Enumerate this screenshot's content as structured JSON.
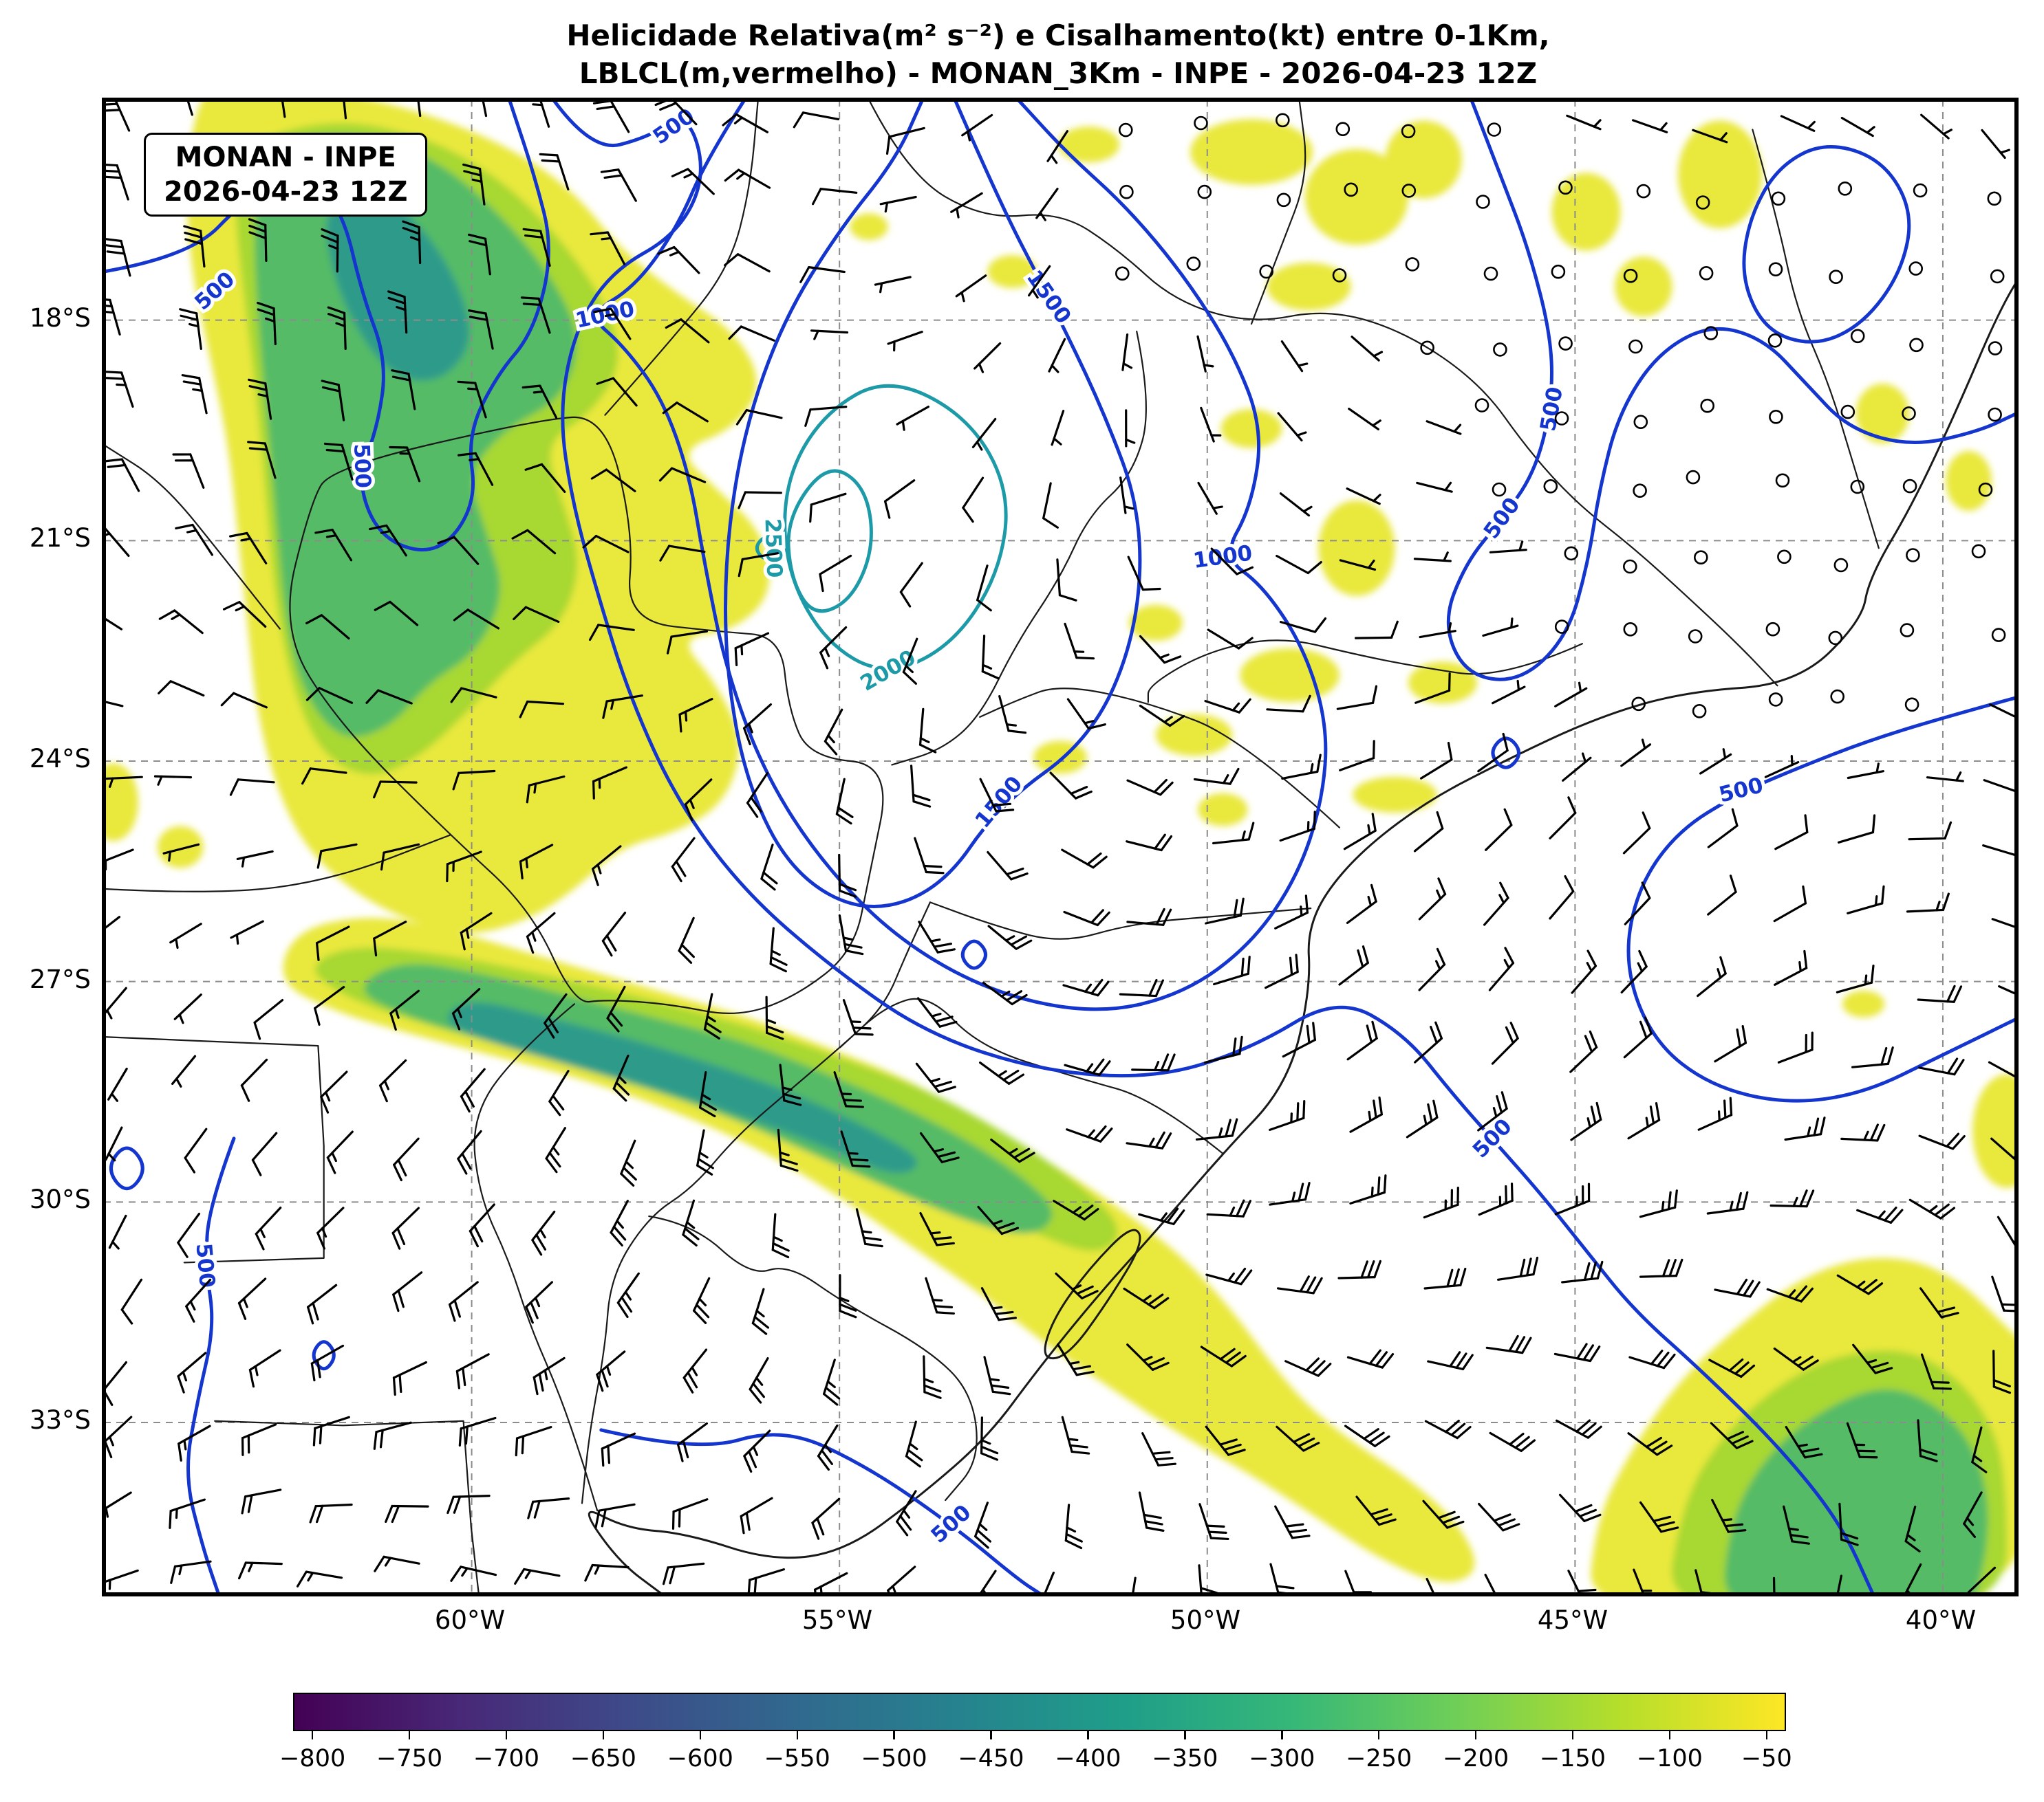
{
  "title": {
    "line1": "Helicidade Relativa(m² s⁻²) e Cisalhamento(kt) entre 0-1Km,",
    "line2": "LBLCL(m,vermelho) - MONAN_3Km - INPE - 2026-04-23 12Z"
  },
  "info_box": {
    "line1": "MONAN - INPE",
    "line2": "2026-04-23 12Z"
  },
  "axes": {
    "lat_ticks": [
      "18°S",
      "21°S",
      "24°S",
      "27°S",
      "30°S",
      "33°S"
    ],
    "lon_ticks": [
      "60°W",
      "55°W",
      "50°W",
      "45°W",
      "40°W"
    ]
  },
  "chart_data": {
    "type": "heatmap",
    "title": "Helicidade Relativa(m² s⁻²) e Cisalhamento(kt) entre 0-1Km, LBLCL(m,vermelho) - MONAN_3Km - INPE - 2026-04-23 12Z",
    "model": "MONAN_3Km",
    "institution": "INPE",
    "valid_time": "2026-04-23 12Z",
    "map_extent": {
      "lon_west_deg_w": 65,
      "lon_east_deg_w": 39,
      "lat_north_deg_s": 15,
      "lat_south_deg_s": 35.3
    },
    "shaded_field": {
      "name": "Helicidade Relativa",
      "units": "m² s⁻²",
      "min": -800,
      "max": -50,
      "colormap": "viridis"
    },
    "contour_field": {
      "name": "LBLCL",
      "units": "m",
      "labeled_levels": [
        500,
        1000,
        1500,
        2000,
        2500
      ]
    },
    "wind_field": {
      "name": "Cisalhamento 0-1Km",
      "units": "kt",
      "glyph": "wind-barbs"
    },
    "colorbar": {
      "orientation": "horizontal",
      "ticks": [
        -800,
        -750,
        -700,
        -650,
        -600,
        -550,
        -500,
        -450,
        -400,
        -350,
        -300,
        -250,
        -200,
        -150,
        -100,
        -50
      ],
      "domain": [
        -810,
        -40
      ]
    },
    "grid": {
      "lat_lines_s": [
        18,
        21,
        24,
        27,
        30,
        33
      ],
      "lon_lines_w": [
        60,
        55,
        50,
        45,
        40
      ]
    }
  },
  "contour_labels": [
    {
      "text": "500",
      "fx": 0.298,
      "fy": 0.018,
      "rot": -35,
      "color": "blue"
    },
    {
      "text": "500",
      "fx": 0.058,
      "fy": 0.128,
      "rot": -42,
      "color": "blue"
    },
    {
      "text": "1000",
      "fx": 0.262,
      "fy": 0.144,
      "rot": -12,
      "color": "blue"
    },
    {
      "text": "1500",
      "fx": 0.494,
      "fy": 0.132,
      "rot": 55,
      "color": "blue"
    },
    {
      "text": "500",
      "fx": 0.135,
      "fy": 0.245,
      "rot": 88,
      "color": "blue"
    },
    {
      "text": "500",
      "fx": 0.757,
      "fy": 0.207,
      "rot": -80,
      "color": "blue"
    },
    {
      "text": "500",
      "fx": 0.731,
      "fy": 0.28,
      "rot": -54,
      "color": "blue"
    },
    {
      "text": "2500",
      "fx": 0.35,
      "fy": 0.3,
      "rot": 88,
      "color": "teal"
    },
    {
      "text": "1000",
      "fx": 0.585,
      "fy": 0.306,
      "rot": -8,
      "color": "blue"
    },
    {
      "text": "2000",
      "fx": 0.41,
      "fy": 0.382,
      "rot": -30,
      "color": "teal"
    },
    {
      "text": "1500",
      "fx": 0.468,
      "fy": 0.47,
      "rot": -50,
      "color": "blue"
    },
    {
      "text": "500",
      "fx": 0.856,
      "fy": 0.462,
      "rot": -14,
      "color": "blue"
    },
    {
      "text": "500",
      "fx": 0.726,
      "fy": 0.695,
      "rot": -45,
      "color": "blue"
    },
    {
      "text": "500",
      "fx": 0.053,
      "fy": 0.78,
      "rot": 85,
      "color": "blue"
    },
    {
      "text": "500",
      "fx": 0.443,
      "fy": 0.953,
      "rot": -42,
      "color": "blue"
    }
  ],
  "colors": {
    "contour_blue": "#1436cf",
    "contour_teal": "#1d9aa8",
    "grid": "#8c8c8c",
    "land_border": "#1a1a1a",
    "fill_yellow": "#e9e83e",
    "fill_yellowgreen": "#a8d832",
    "fill_green": "#55bb66",
    "fill_teal": "#2f9b8a",
    "viridis": [
      "#440154",
      "#482878",
      "#3e4a89",
      "#31688e",
      "#26828e",
      "#1f9e89",
      "#35b779",
      "#6ece58",
      "#b5de2b",
      "#fde725"
    ]
  }
}
